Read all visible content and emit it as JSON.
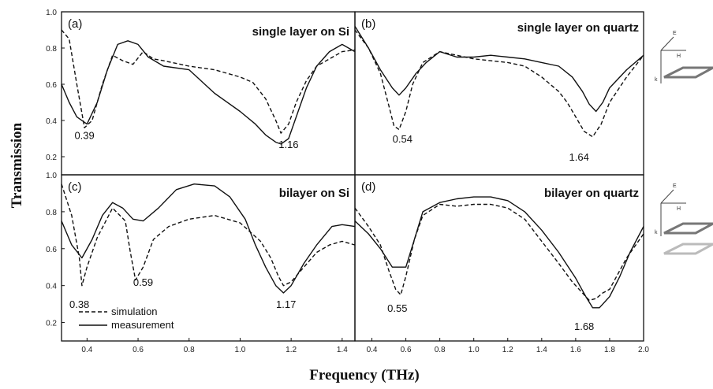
{
  "figure": {
    "ylabel": "Transmission",
    "xlabel": "Frequency (THz)",
    "legend": {
      "simulation": "simulation",
      "measurement": "measurement"
    },
    "inset_labels": {
      "e": "E",
      "h": "H",
      "k": "k"
    }
  },
  "chart_data": [
    {
      "type": "line",
      "panel": "(a)",
      "title": "single layer on Si",
      "xlim": [
        0.3,
        1.45
      ],
      "ylim": [
        0.1,
        1.0
      ],
      "xticks": [],
      "yticks": [
        "1.0",
        "0.8",
        "0.6",
        "0.4",
        "0.2"
      ],
      "dip_labels": [
        {
          "text": "0.39",
          "x": 0.39,
          "y": 0.32
        },
        {
          "text": "1.16",
          "x": 1.19,
          "y": 0.27
        }
      ],
      "series": [
        {
          "name": "simulation",
          "style": "dashed",
          "x": [
            0.3,
            0.33,
            0.36,
            0.39,
            0.42,
            0.46,
            0.5,
            0.54,
            0.58,
            0.62,
            0.66,
            0.7,
            0.8,
            0.9,
            1.0,
            1.05,
            1.1,
            1.14,
            1.16,
            1.19,
            1.22,
            1.26,
            1.3,
            1.35,
            1.4,
            1.45
          ],
          "y": [
            0.9,
            0.85,
            0.6,
            0.36,
            0.4,
            0.6,
            0.76,
            0.73,
            0.71,
            0.78,
            0.74,
            0.73,
            0.7,
            0.68,
            0.64,
            0.61,
            0.52,
            0.4,
            0.33,
            0.38,
            0.5,
            0.62,
            0.7,
            0.74,
            0.78,
            0.79
          ]
        },
        {
          "name": "measurement",
          "style": "solid",
          "x": [
            0.3,
            0.33,
            0.36,
            0.4,
            0.44,
            0.48,
            0.52,
            0.56,
            0.6,
            0.64,
            0.7,
            0.8,
            0.9,
            1.0,
            1.06,
            1.1,
            1.14,
            1.16,
            1.19,
            1.22,
            1.26,
            1.3,
            1.35,
            1.4,
            1.45
          ],
          "y": [
            0.6,
            0.5,
            0.42,
            0.38,
            0.5,
            0.68,
            0.82,
            0.84,
            0.82,
            0.75,
            0.7,
            0.68,
            0.55,
            0.45,
            0.38,
            0.32,
            0.28,
            0.27,
            0.3,
            0.42,
            0.58,
            0.7,
            0.78,
            0.82,
            0.78
          ]
        }
      ]
    },
    {
      "type": "line",
      "panel": "(b)",
      "title": "single layer on quartz",
      "xlim": [
        0.3,
        2.0
      ],
      "ylim": [
        0.1,
        1.0
      ],
      "xticks": [],
      "yticks": [],
      "dip_labels": [
        {
          "text": "0.54",
          "x": 0.58,
          "y": 0.3
        },
        {
          "text": "1.64",
          "x": 1.62,
          "y": 0.2
        }
      ],
      "series": [
        {
          "name": "simulation",
          "style": "dashed",
          "x": [
            0.3,
            0.38,
            0.45,
            0.5,
            0.53,
            0.56,
            0.6,
            0.64,
            0.7,
            0.8,
            0.9,
            1.0,
            1.1,
            1.2,
            1.3,
            1.4,
            1.5,
            1.55,
            1.6,
            1.65,
            1.7,
            1.75,
            1.8,
            1.9,
            2.0
          ],
          "y": [
            0.9,
            0.8,
            0.66,
            0.48,
            0.37,
            0.35,
            0.45,
            0.6,
            0.72,
            0.78,
            0.76,
            0.74,
            0.73,
            0.72,
            0.7,
            0.64,
            0.56,
            0.5,
            0.42,
            0.34,
            0.31,
            0.38,
            0.5,
            0.64,
            0.76
          ]
        },
        {
          "name": "measurement",
          "style": "solid",
          "x": [
            0.3,
            0.38,
            0.45,
            0.52,
            0.56,
            0.6,
            0.66,
            0.72,
            0.8,
            0.9,
            1.0,
            1.1,
            1.2,
            1.3,
            1.4,
            1.5,
            1.58,
            1.64,
            1.68,
            1.72,
            1.76,
            1.8,
            1.9,
            2.0
          ],
          "y": [
            0.92,
            0.8,
            0.68,
            0.58,
            0.54,
            0.58,
            0.66,
            0.72,
            0.78,
            0.75,
            0.75,
            0.76,
            0.75,
            0.74,
            0.72,
            0.7,
            0.64,
            0.56,
            0.49,
            0.45,
            0.5,
            0.58,
            0.68,
            0.76
          ]
        }
      ]
    },
    {
      "type": "line",
      "panel": "(c)",
      "title": "bilayer on Si",
      "xlim": [
        0.3,
        1.45
      ],
      "ylim": [
        0.1,
        1.0
      ],
      "xticks": [
        "0.4",
        "0.6",
        "0.8",
        "1.0",
        "1.2",
        "1.4"
      ],
      "yticks": [
        "1.0",
        "0.8",
        "0.6",
        "0.4",
        "0.2"
      ],
      "dip_labels": [
        {
          "text": "0.38",
          "x": 0.37,
          "y": 0.3
        },
        {
          "text": "0.59",
          "x": 0.62,
          "y": 0.42
        },
        {
          "text": "1.17",
          "x": 1.18,
          "y": 0.3
        }
      ],
      "series": [
        {
          "name": "simulation",
          "style": "dashed",
          "x": [
            0.3,
            0.34,
            0.37,
            0.38,
            0.4,
            0.44,
            0.5,
            0.55,
            0.57,
            0.59,
            0.62,
            0.66,
            0.72,
            0.8,
            0.9,
            1.0,
            1.08,
            1.12,
            1.15,
            1.17,
            1.2,
            1.25,
            1.3,
            1.35,
            1.4,
            1.45
          ],
          "y": [
            0.95,
            0.78,
            0.55,
            0.4,
            0.5,
            0.66,
            0.82,
            0.75,
            0.58,
            0.43,
            0.5,
            0.65,
            0.72,
            0.76,
            0.78,
            0.74,
            0.64,
            0.55,
            0.45,
            0.4,
            0.42,
            0.5,
            0.58,
            0.62,
            0.64,
            0.62
          ]
        },
        {
          "name": "measurement",
          "style": "solid",
          "x": [
            0.3,
            0.34,
            0.38,
            0.42,
            0.46,
            0.5,
            0.54,
            0.58,
            0.62,
            0.68,
            0.75,
            0.82,
            0.9,
            0.96,
            1.02,
            1.06,
            1.1,
            1.14,
            1.17,
            1.2,
            1.25,
            1.3,
            1.36,
            1.4,
            1.45
          ],
          "y": [
            0.75,
            0.62,
            0.55,
            0.65,
            0.78,
            0.85,
            0.82,
            0.76,
            0.75,
            0.82,
            0.92,
            0.95,
            0.94,
            0.88,
            0.76,
            0.62,
            0.5,
            0.4,
            0.36,
            0.4,
            0.52,
            0.62,
            0.72,
            0.73,
            0.72
          ]
        }
      ]
    },
    {
      "type": "line",
      "panel": "(d)",
      "title": "bilayer on quartz",
      "xlim": [
        0.3,
        2.0
      ],
      "ylim": [
        0.1,
        1.0
      ],
      "xticks": [
        "0.4",
        "0.6",
        "0.8",
        "1.0",
        "1.2",
        "1.4",
        "1.6",
        "1.8",
        "2.0"
      ],
      "yticks": [],
      "dip_labels": [
        {
          "text": "0.55",
          "x": 0.55,
          "y": 0.28
        },
        {
          "text": "1.68",
          "x": 1.65,
          "y": 0.18
        }
      ],
      "series": [
        {
          "name": "simulation",
          "style": "dashed",
          "x": [
            0.3,
            0.38,
            0.45,
            0.5,
            0.54,
            0.57,
            0.6,
            0.65,
            0.7,
            0.8,
            0.9,
            1.0,
            1.1,
            1.2,
            1.3,
            1.4,
            1.5,
            1.58,
            1.64,
            1.68,
            1.72,
            1.76,
            1.8,
            1.9,
            2.0
          ],
          "y": [
            0.82,
            0.72,
            0.62,
            0.48,
            0.38,
            0.35,
            0.45,
            0.65,
            0.78,
            0.84,
            0.83,
            0.84,
            0.84,
            0.82,
            0.76,
            0.64,
            0.52,
            0.42,
            0.36,
            0.32,
            0.33,
            0.36,
            0.38,
            0.55,
            0.68
          ]
        },
        {
          "name": "measurement",
          "style": "solid",
          "x": [
            0.3,
            0.38,
            0.45,
            0.52,
            0.6,
            0.65,
            0.7,
            0.8,
            0.9,
            1.0,
            1.1,
            1.2,
            1.3,
            1.4,
            1.5,
            1.6,
            1.66,
            1.7,
            1.74,
            1.8,
            1.86,
            1.92,
            2.0
          ],
          "y": [
            0.75,
            0.68,
            0.6,
            0.5,
            0.5,
            0.65,
            0.8,
            0.85,
            0.87,
            0.88,
            0.88,
            0.86,
            0.8,
            0.7,
            0.58,
            0.44,
            0.34,
            0.28,
            0.28,
            0.34,
            0.45,
            0.58,
            0.72
          ]
        }
      ]
    }
  ]
}
